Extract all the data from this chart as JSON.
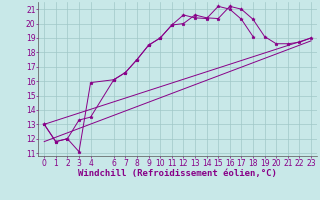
{
  "xlabel": "Windchill (Refroidissement éolien,°C)",
  "bg_color": "#c8e8e8",
  "plot_bg_color": "#c8e8e8",
  "grid_color": "#a0c8c8",
  "line_color": "#880088",
  "ylim_min": 11,
  "ylim_max": 21.5,
  "xlim_min": -0.5,
  "xlim_max": 23.5,
  "yticks": [
    11,
    12,
    13,
    14,
    15,
    16,
    17,
    18,
    19,
    20,
    21
  ],
  "xticks": [
    0,
    1,
    2,
    3,
    4,
    6,
    7,
    8,
    9,
    10,
    11,
    12,
    13,
    14,
    15,
    16,
    17,
    18,
    19,
    20,
    21,
    22,
    23
  ],
  "curve1_x": [
    0,
    1,
    2,
    3,
    4,
    6,
    7,
    8,
    9,
    10,
    11,
    12,
    13,
    14,
    15,
    16,
    17,
    18
  ],
  "curve1_y": [
    13.0,
    11.8,
    12.0,
    11.1,
    15.9,
    16.1,
    16.6,
    17.5,
    18.5,
    19.0,
    19.9,
    20.6,
    20.4,
    20.35,
    21.2,
    21.0,
    20.3,
    19.1
  ],
  "curve2_x": [
    0,
    1,
    2,
    3,
    4,
    6,
    7,
    8,
    9,
    10,
    11,
    12,
    13,
    14,
    15,
    16,
    17,
    18,
    19,
    20,
    21,
    22,
    23
  ],
  "curve2_y": [
    13.0,
    11.8,
    12.0,
    13.3,
    13.5,
    16.1,
    16.6,
    17.5,
    18.5,
    19.0,
    19.9,
    20.0,
    20.6,
    20.4,
    20.35,
    21.2,
    21.0,
    20.3,
    19.1,
    18.6,
    18.6,
    18.7,
    19.0
  ],
  "line3_x": [
    0,
    23
  ],
  "line3_y": [
    13.0,
    19.0
  ],
  "line4_x": [
    0,
    23
  ],
  "line4_y": [
    11.8,
    18.8
  ],
  "font_size_label": 6.5,
  "font_size_tick": 5.5,
  "marker": "*",
  "marker_size": 2.5,
  "lw": 0.7
}
